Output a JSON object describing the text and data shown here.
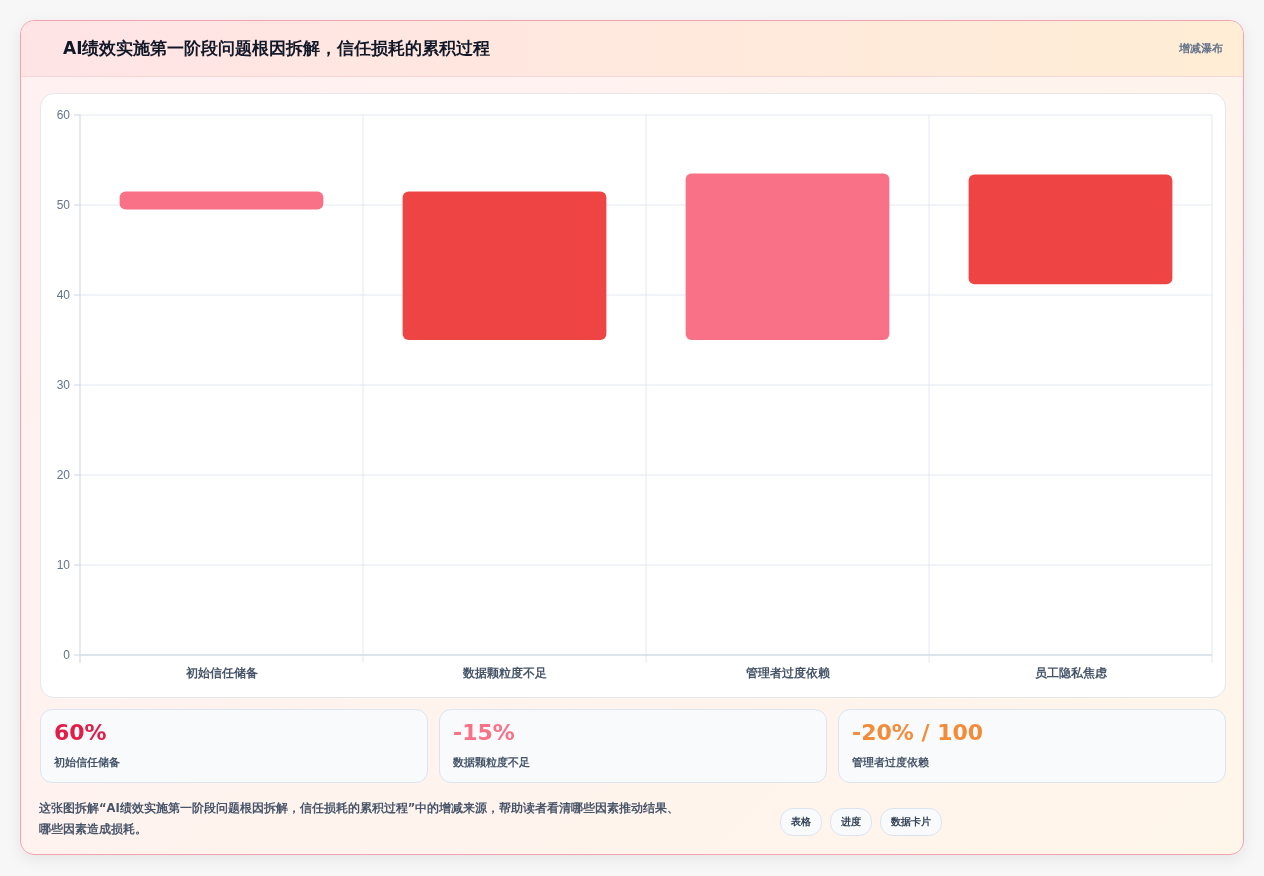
{
  "chart_data": {
    "type": "bar",
    "title": "AI绩效实施第一阶段问题根因拆解，信任损耗的累积过程",
    "subtitle": "增减瀑布",
    "categories": [
      "初始信任储备",
      "数据颗粒度不足",
      "管理者过度依赖",
      "员工隐私焦虑"
    ],
    "values": [
      2,
      16.5,
      18.5,
      12.2
    ],
    "base": [
      49.5,
      35,
      35,
      41.2
    ],
    "colors": [
      "#f87187",
      "#ef4444",
      "#f87187",
      "#ef4444"
    ],
    "ylim": [
      0,
      60
    ],
    "yticks": [
      0,
      10,
      20,
      30,
      40,
      50,
      60
    ],
    "grid": true,
    "annotations": [
      "60%",
      "初始信任储备",
      "-15%",
      "数据颗粒度不足",
      "-20% / 100",
      "管理者过度依赖",
      "这张图拆解“AI绩效实施第一阶段问题根因拆解，信任损耗的累积过程”中的增减来源，帮助读者看清哪些因素推动结果、哪些因素造成损耗。",
      "表格",
      "进度",
      "数据卡片"
    ]
  }
}
